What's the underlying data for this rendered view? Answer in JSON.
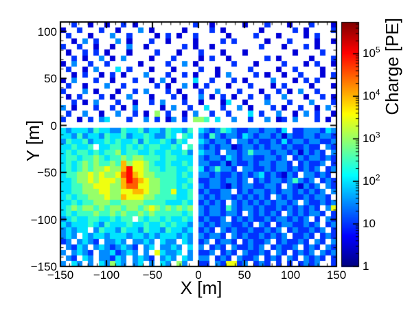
{
  "chart_data": {
    "type": "heatmap",
    "title": "",
    "xlabel": "X [m]",
    "ylabel": "Y [m]",
    "zlabel": "Charge [PE]",
    "x_range": [
      -150,
      150
    ],
    "y_range": [
      -150,
      110
    ],
    "z_scale": "log",
    "z_range": [
      1,
      560000
    ],
    "grid_lines": false,
    "colormap": "jet",
    "colorbar_position": "right",
    "x_ticks": {
      "values": [
        -150,
        -100,
        -50,
        0,
        50,
        100,
        150
      ],
      "labels": [
        "−150",
        "−100",
        "−50",
        "0",
        "50",
        "100",
        "150"
      ],
      "minor_step": 10
    },
    "y_ticks": {
      "values": [
        -150,
        -100,
        -50,
        0,
        50,
        100
      ],
      "labels": [
        "−150",
        "−100",
        "−50",
        "0",
        "50",
        "100"
      ],
      "minor_step": 10
    },
    "z_ticks": {
      "log_values": [
        0,
        1,
        2,
        3,
        4,
        5
      ],
      "labels": [
        {
          "m": "1"
        },
        {
          "m": "10"
        },
        {
          "m": "10",
          "e": "2"
        },
        {
          "m": "10",
          "e": "3"
        },
        {
          "m": "10",
          "e": "4"
        },
        {
          "m": "10",
          "e": "5"
        }
      ]
    },
    "features": {
      "empty_band": "horizontal empty band at y = 0 across full width",
      "empty_column": "vertical empty column at x = 0 for y < 0",
      "hotspot": {
        "x_m": -80,
        "y_m": -55,
        "peak_charge_PE": 100000
      }
    },
    "bins": {
      "cols": 50,
      "rows_count": 44,
      "x_min_m": -150,
      "x_bin_m": 6,
      "y_max_m": 110,
      "y_bin_m": 5.909,
      "encoding": "one char per cell: '.' = no hit (white); base-36 digit d => log10(charge PE) = 0.5*d",
      "rows": [
        "..2..1..1..2.1..........2..1.....1...2...1...2...1",
        "1..2...2..1...3.1.....1....2.1......1.....2.1....2",
        ".2...1...3..2....1.2.1..2.....1....2...1....1.2...",
        "..1.3.2...3.1...2..1....1....2.2.....1...2....1..1",
        "2..2..1..1..3..1......2.1..1........2...1...2.1...",
        ".1..2.2.1...1....2...1...2...1...1........1....2..",
        "..2.1..3.1.3....1...2....1.2..1......2.1.....1...2",
        "1.3..2..2.....1....2..3.1......2...1....2...1.2..1",
        ".2..1.3...4.2...1...1....2..1.....2....1..2....1..",
        "..1.2..1.2.1...3...2..2.1...1.3....2.1..1..2...1.2",
        "1.3...2..1...2..1.3.1...4..2...2.1....3...1.2.2...",
        ".2..1...3..2.....2.1..3.1.2...1...2...1.2....1...1",
        "2...3.1...1..2.3...2.1...2..3...2...1..2.1.3..2...",
        ".1.2...2.1..3...1...2.1..3.1.2.1..2..2..3...1..2.1",
        "..2.1.3...2..1..2.3...2..1...14..1...3...2...3...2",
        "3.1...2..2.1.3....1.3..2..4..2..3.1...2.1..2..1.3.",
        ".2..3..1..3..2.1.6.2..1.3..2..2...4.2..3..1.3.2..1",
        "2..1.2.34...2..3.2.13.2.665.4..3..2..3.12.3...2.1.",
        "..................................................",
        "434443544335445344354435.4323543223323324.22333243",
        "443534435445344543354.54.3253233243233231322332332",
        "35445344545445354454354..432332.332322324233233223",
        "445445.445545454554454.5.3232331233232332322322.32",
        "454554545564554454454453.4332.332353332332313232.3",
        "455455654556566555455444.3233243233223323.23233232",
        "454565655658677654454454.33223132232332332.23223.2",
        "454565667668a77655455445.4235332.33223233232323.23",
        "455667676679a87665555454.332322323234232132.33232.",
        "445667677768a98766555445.223323323.23233235323.232",
        "445566777668997766555454.323321323322332.321323.32",
        "445566677667788766557445.232233.2323323233232323.3",
        "454556667668777665555445.3232332323232.3232232332.",
        "445455666556666555544454.23232.323232323323.322323",
        "456566565665665676565656.3233253233232232323232.37",
        "454555655656556565555545.32332332.323232.3232332.2",
        "3454455445455.5455454454.23223.23232232332323.2.32",
        "434445435444544544545443.3232332232.32.23322323.23",
        "34344.354435443544354434.232.32322322323.2322323.2",
        "343.43443444344343444343.32332.3232232323.2232.232",
        "23.3432.3343.3343.433.43.23.2332.23223.232232.32.3",
        ".3243.34323432.34.3343.4.3.232.322323.23223.232.32",
        "3.3432.3342343.3.74334.3.223.232.32232.32.2323.323",
        ".32.43.33243.3432.343.43.33.232.3223.232.32.3232.2",
        "3.43.3.43643.34.3.43.63..22.327723.232.2.2.2323..2"
      ]
    }
  }
}
